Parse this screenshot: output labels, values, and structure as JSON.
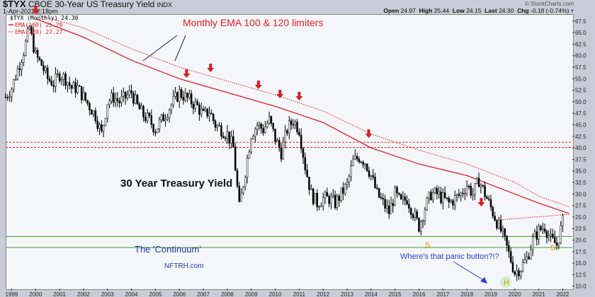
{
  "header": {
    "symbol": "$TYX",
    "name": "CBOE 30-Year US Treasury Yield",
    "exchange": "INDX",
    "date": "1-Apr-2022 2:18pm",
    "source": "© StockCharts.com",
    "open_label": "Open",
    "open": "24.97",
    "high_label": "High",
    "high": "25.44",
    "low_label": "Low",
    "low": "24.15",
    "last_label": "Last",
    "last": "24.30",
    "chg_label": "Chg",
    "chg": "-0.18 (-0.74%)"
  },
  "legend": {
    "price": "$TYX (Monthly) 24.30",
    "ema100": "EMA(100) 25.79",
    "ema120": "EMA(120) 27.27"
  },
  "annotations": {
    "title": "Monthly EMA 100 & 120 limiters",
    "chart_title": "30 Year Treasury Yield",
    "continuum": "The 'Continuum'",
    "site": "NFTRH.com",
    "panic": "Where's that panic button?!?",
    "s1": "S",
    "s2": "S",
    "h": "H"
  },
  "colors": {
    "ema": "#e02020",
    "support": "#3a9a2a",
    "annot_blue": "#1a3aa0",
    "shs": "#f08a00",
    "bars": "#000000"
  },
  "chart_data": {
    "type": "ohlc-bar",
    "title": "$TYX CBOE 30-Year US Treasury Yield (Monthly)",
    "ylim": [
      9.5,
      69
    ],
    "yticks": [
      "67.5",
      "65.0",
      "62.5",
      "60.0",
      "57.5",
      "55.0",
      "52.5",
      "50.0",
      "47.5",
      "45.0",
      "42.5",
      "40.0",
      "37.5",
      "35.0",
      "32.5",
      "30.0",
      "27.5",
      "25.0",
      "22.5",
      "20.0",
      "17.5",
      "15.0",
      "12.5",
      "10.0"
    ],
    "xticks": [
      "1999",
      "2000",
      "2001",
      "2002",
      "2003",
      "2004",
      "2005",
      "2006",
      "2007",
      "2008",
      "2009",
      "2010",
      "2011",
      "2012",
      "2013",
      "2014",
      "2015",
      "2016",
      "2017",
      "2018",
      "2019",
      "2020",
      "2021",
      "2022"
    ],
    "xlim": [
      1998.75,
      2022.4
    ],
    "quarterly_close_start": 1998.75,
    "quarterly_close": [
      51,
      53,
      57,
      61,
      66,
      60,
      58,
      55,
      54,
      56,
      55,
      53,
      53,
      51,
      49,
      47,
      43,
      50,
      51,
      50,
      51,
      52,
      49,
      47,
      46,
      44,
      46,
      48,
      50,
      52,
      51,
      50,
      49,
      47,
      48,
      45,
      44,
      43,
      40,
      27,
      35,
      43,
      45,
      44,
      46,
      42,
      39,
      44,
      46,
      44,
      36,
      30,
      28,
      29,
      29,
      28,
      30,
      32,
      37,
      38,
      37,
      34,
      30,
      28,
      26,
      30,
      28,
      29,
      26,
      23,
      27,
      30,
      30,
      29,
      28,
      29,
      30,
      32,
      30,
      33,
      30,
      27,
      24,
      21,
      17,
      13,
      14,
      16,
      20,
      22,
      23,
      20,
      19,
      24
    ],
    "ema100": [
      [
        2000,
        68
      ],
      [
        2002,
        64
      ],
      [
        2004,
        59
      ],
      [
        2006,
        55
      ],
      [
        2008,
        52
      ],
      [
        2010,
        49
      ],
      [
        2012,
        45.5
      ],
      [
        2014,
        40
      ],
      [
        2016,
        36.5
      ],
      [
        2018,
        34
      ],
      [
        2020,
        30
      ],
      [
        2021,
        28
      ],
      [
        2022.25,
        25.79
      ]
    ],
    "ema120": [
      [
        2000,
        69
      ],
      [
        2002,
        66
      ],
      [
        2004,
        61.5
      ],
      [
        2006,
        57.5
      ],
      [
        2008,
        54.5
      ],
      [
        2010,
        51.5
      ],
      [
        2012,
        48
      ],
      [
        2014,
        43
      ],
      [
        2016,
        39.5
      ],
      [
        2018,
        36.5
      ],
      [
        2020,
        32.5
      ],
      [
        2021,
        29.5
      ],
      [
        2022.25,
        27.27
      ]
    ],
    "resistance_lines": [
      41.2,
      40.1
    ],
    "support_lines": [
      20.8,
      18.4
    ],
    "neckline": [
      [
        2019.4,
        24.4
      ],
      [
        2022.3,
        25.6
      ]
    ],
    "peak_arrows": [
      2000,
      2006.3,
      2007.3,
      2009.3,
      2010.2,
      2011.0,
      2013.9,
      2018.6
    ]
  }
}
